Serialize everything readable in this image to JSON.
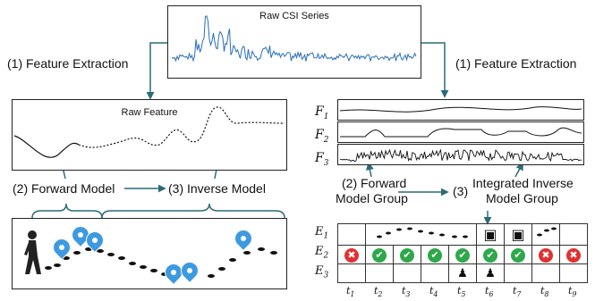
{
  "top": {
    "title": "Raw CSI Series"
  },
  "labels": {
    "feature_left": "(1) Feature Extraction",
    "feature_right": "(1) Feature Extraction",
    "raw_feature": "Raw Feature",
    "forward_model": "(2) Forward Model",
    "inverse_model": "(3) Inverse Model",
    "forward_group_1": "(2) Forward",
    "forward_group_2": "Model Group",
    "inverse_group_num": "(3)",
    "inverse_group_1": "Integrated Inverse",
    "inverse_group_2": "Model Group"
  },
  "features": [
    "F1",
    "F2",
    "F3"
  ],
  "grid": {
    "rows": [
      "E1",
      "E2",
      "E3"
    ],
    "times": [
      "t1",
      "t2",
      "t3",
      "t4",
      "t5",
      "t6",
      "t7",
      "t8",
      "t9"
    ],
    "E2_status": [
      "no",
      "ok",
      "ok",
      "ok",
      "ok",
      "ok",
      "ok",
      "no",
      "no"
    ]
  },
  "colors": {
    "signal": "#2a6fb5",
    "ok": "#2ea84a",
    "no": "#e03030",
    "pin": "#3d9ae0"
  }
}
